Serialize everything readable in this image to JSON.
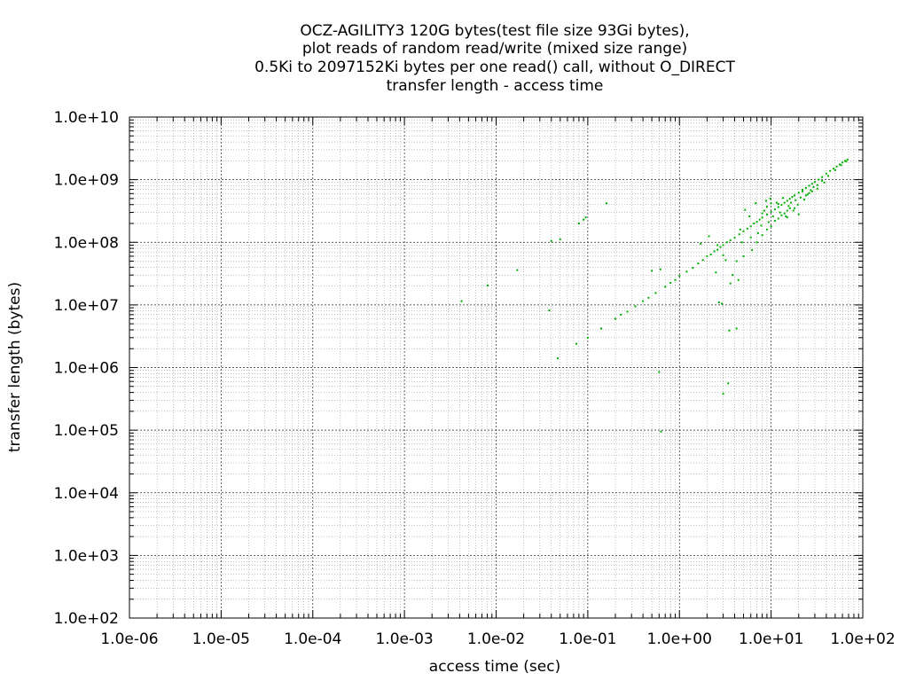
{
  "chart_data": {
    "type": "scatter",
    "title_lines": [
      "OCZ-AGILITY3 120G bytes(test file size 93Gi bytes),",
      "plot reads of random read/write (mixed size range)",
      "0.5Ki to 2097152Ki bytes per one read() call, without O_DIRECT",
      "transfer length - access time"
    ],
    "xlabel": "access time (sec)",
    "ylabel": "transfer length (bytes)",
    "x_scale": "log",
    "y_scale": "log",
    "xlim": [
      1e-06,
      100
    ],
    "ylim": [
      100,
      10000000000.0
    ],
    "x_ticks": [
      "1.0e-06",
      "1.0e-05",
      "1.0e-04",
      "1.0e-03",
      "1.0e-02",
      "1.0e-01",
      "1.0e+00",
      "1.0e+01",
      "1.0e+02"
    ],
    "y_ticks": [
      "1.0e+02",
      "1.0e+03",
      "1.0e+04",
      "1.0e+05",
      "1.0e+06",
      "1.0e+07",
      "1.0e+08",
      "1.0e+09",
      "1.0e+10"
    ],
    "grid": true,
    "series_color": "#00b000",
    "points": [
      [
        0.0042,
        11500000
      ],
      [
        0.0081,
        20500000
      ],
      [
        0.017,
        36000000
      ],
      [
        0.038,
        8200000
      ],
      [
        0.04,
        105000000
      ],
      [
        0.047,
        1400000
      ],
      [
        0.05,
        112000000
      ],
      [
        0.075,
        2400000
      ],
      [
        0.08,
        200000000
      ],
      [
        0.09,
        230000000
      ],
      [
        0.095,
        250000000
      ],
      [
        0.1,
        3000000
      ],
      [
        0.14,
        4200000
      ],
      [
        0.16,
        420000000
      ],
      [
        0.2,
        6000000
      ],
      [
        0.23,
        7000000
      ],
      [
        0.27,
        7800000
      ],
      [
        0.33,
        9500000
      ],
      [
        0.4,
        11500000
      ],
      [
        0.46,
        13000000
      ],
      [
        0.5,
        35000000
      ],
      [
        0.55,
        15500000
      ],
      [
        0.6,
        850000
      ],
      [
        0.62,
        37000000
      ],
      [
        0.63,
        95000
      ],
      [
        0.7,
        19500000
      ],
      [
        0.8,
        22500000
      ],
      [
        0.9,
        25000000
      ],
      [
        1.0,
        29000000
      ],
      [
        1.2,
        34000000
      ],
      [
        1.4,
        39000000
      ],
      [
        1.6,
        46000000
      ],
      [
        1.8,
        52000000
      ],
      [
        2.0,
        60000000
      ],
      [
        2.2,
        64000000
      ],
      [
        2.4,
        72000000
      ],
      [
        2.6,
        76000000
      ],
      [
        2.8,
        84000000
      ],
      [
        3.0,
        90000000
      ],
      [
        3.0,
        380000
      ],
      [
        3.3,
        100000000
      ],
      [
        3.4,
        560000
      ],
      [
        3.5,
        3900000
      ],
      [
        3.6,
        108000000
      ],
      [
        4.0,
        118000000
      ],
      [
        4.2,
        4200000
      ],
      [
        4.5,
        134000000
      ],
      [
        5.0,
        150000000
      ],
      [
        5.5,
        165000000
      ],
      [
        6.0,
        180000000
      ],
      [
        6.5,
        200000000
      ],
      [
        7.0,
        212000000
      ],
      [
        7.5,
        230000000
      ],
      [
        8.0,
        248000000
      ],
      [
        9.0,
        278000000
      ],
      [
        10.0,
        305000000
      ],
      [
        11.0,
        335000000
      ],
      [
        12.0,
        365000000
      ],
      [
        13.0,
        395000000
      ],
      [
        14.0,
        430000000
      ],
      [
        15.0,
        460000000
      ],
      [
        16.0,
        495000000
      ],
      [
        17.0,
        530000000
      ],
      [
        18.0,
        560000000
      ],
      [
        20.0,
        620000000
      ],
      [
        22.0,
        690000000
      ],
      [
        24.0,
        740000000
      ],
      [
        26.0,
        800000000
      ],
      [
        28.0,
        860000000
      ],
      [
        30.0,
        920000000
      ],
      [
        33.0,
        1000000000
      ],
      [
        36.0,
        1100000000
      ],
      [
        40.0,
        1250000000
      ],
      [
        44.0,
        1380000000
      ],
      [
        48.0,
        1500000000
      ],
      [
        52.0,
        1620000000
      ],
      [
        56.0,
        1750000000
      ],
      [
        60.0,
        1880000000
      ],
      [
        64.0,
        2000000000
      ],
      [
        68.0,
        2100000000
      ],
      [
        1.7,
        95000000
      ],
      [
        2.1,
        125000000
      ],
      [
        2.5,
        33000000
      ],
      [
        2.7,
        11000000
      ],
      [
        2.9,
        10500000
      ],
      [
        3.2,
        52000000
      ],
      [
        3.8,
        30000000
      ],
      [
        4.4,
        25000000
      ],
      [
        4.8,
        100000000
      ],
      [
        5.2,
        330000000
      ],
      [
        5.8,
        260000000
      ],
      [
        6.2,
        75000000
      ],
      [
        6.8,
        420000000
      ],
      [
        7.2,
        140000000
      ],
      [
        7.8,
        185000000
      ],
      [
        8.4,
        320000000
      ],
      [
        8.8,
        460000000
      ],
      [
        9.4,
        210000000
      ],
      [
        9.8,
        500000000
      ],
      [
        10.5,
        260000000
      ],
      [
        11.5,
        430000000
      ],
      [
        12.5,
        300000000
      ],
      [
        13.5,
        510000000
      ],
      [
        14.5,
        260000000
      ],
      [
        15.5,
        380000000
      ],
      [
        16.5,
        430000000
      ],
      [
        17.5,
        320000000
      ],
      [
        18.5,
        470000000
      ],
      [
        19.5,
        400000000
      ],
      [
        21.0,
        520000000
      ],
      [
        23.0,
        480000000
      ],
      [
        25.0,
        580000000
      ],
      [
        27.0,
        680000000
      ],
      [
        29.0,
        760000000
      ],
      [
        32.0,
        820000000
      ],
      [
        36.0,
        960000000
      ],
      [
        42.0,
        1150000000
      ],
      [
        50.0,
        1420000000
      ],
      [
        58.0,
        1700000000
      ],
      [
        66.0,
        1950000000
      ],
      [
        7.0,
        100000000
      ],
      [
        8.0,
        130000000
      ],
      [
        9.0,
        160000000
      ],
      [
        10.0,
        180000000
      ],
      [
        11.0,
        220000000
      ],
      [
        12.0,
        240000000
      ],
      [
        13.0,
        270000000
      ],
      [
        14.0,
        290000000
      ],
      [
        15.0,
        320000000
      ],
      [
        16.0,
        350000000
      ],
      [
        24.0,
        560000000
      ],
      [
        26.0,
        610000000
      ],
      [
        28.0,
        650000000
      ],
      [
        32.0,
        720000000
      ],
      [
        38.0,
        900000000
      ],
      [
        22.0,
        650000000
      ],
      [
        18.0,
        350000000
      ],
      [
        20.0,
        280000000
      ],
      [
        15.0,
        250000000
      ],
      [
        12.0,
        410000000
      ],
      [
        10.0,
        420000000
      ],
      [
        9.0,
        370000000
      ],
      [
        8.0,
        290000000
      ],
      [
        6.0,
        120000000
      ],
      [
        5.0,
        60000000
      ],
      [
        4.6,
        160000000
      ],
      [
        4.2,
        50000000
      ],
      [
        3.6,
        22000000
      ],
      [
        3.0,
        62000000
      ],
      [
        2.6,
        90000000
      ]
    ]
  }
}
